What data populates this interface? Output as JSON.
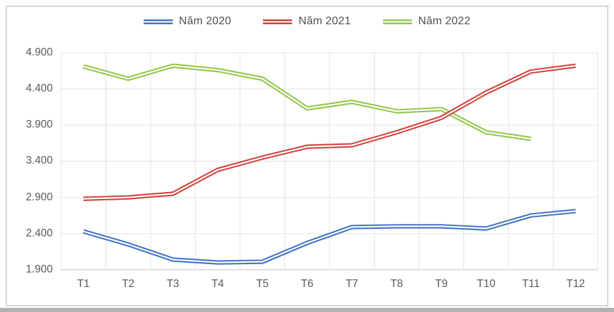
{
  "chart_data": {
    "type": "line",
    "title": "",
    "categories": [
      "T1",
      "T2",
      "T3",
      "T4",
      "T5",
      "T6",
      "T7",
      "T8",
      "T9",
      "T10",
      "T11",
      "T12"
    ],
    "series": [
      {
        "name": "Năm 2020",
        "color": "#4374c4",
        "values": [
          2430,
          2250,
          2040,
          2000,
          2010,
          2270,
          2490,
          2500,
          2500,
          2470,
          2650,
          2710
        ]
      },
      {
        "name": "Năm 2021",
        "color": "#d0453c",
        "values": [
          2880,
          2900,
          2950,
          3280,
          3450,
          3600,
          3620,
          3800,
          4000,
          4350,
          4640,
          4720
        ]
      },
      {
        "name": "Năm 2022",
        "color": "#93c64e",
        "values": [
          4710,
          4540,
          4720,
          4660,
          4540,
          4130,
          4220,
          4090,
          4120,
          3800,
          3710,
          null
        ]
      }
    ],
    "xlabel": "",
    "ylabel": "",
    "ylim": [
      1900,
      4900
    ],
    "y_tick_step": 500,
    "y_tick_labels_top_to_bottom": [
      "4.900",
      "4.400",
      "3.900",
      "3.400",
      "2.900",
      "2.400",
      "1.900"
    ],
    "grid": true,
    "legend_position": "top",
    "line_style": "double-line-white-center",
    "colors": {
      "grid_color": "#e3e3e3",
      "axis_line_color": "#bfbfbf",
      "tick_text_color": "#595959",
      "legend_text_color": "#4f4f4f",
      "chart_border_color": "#d6d6d6",
      "background": "#ffffff"
    }
  }
}
